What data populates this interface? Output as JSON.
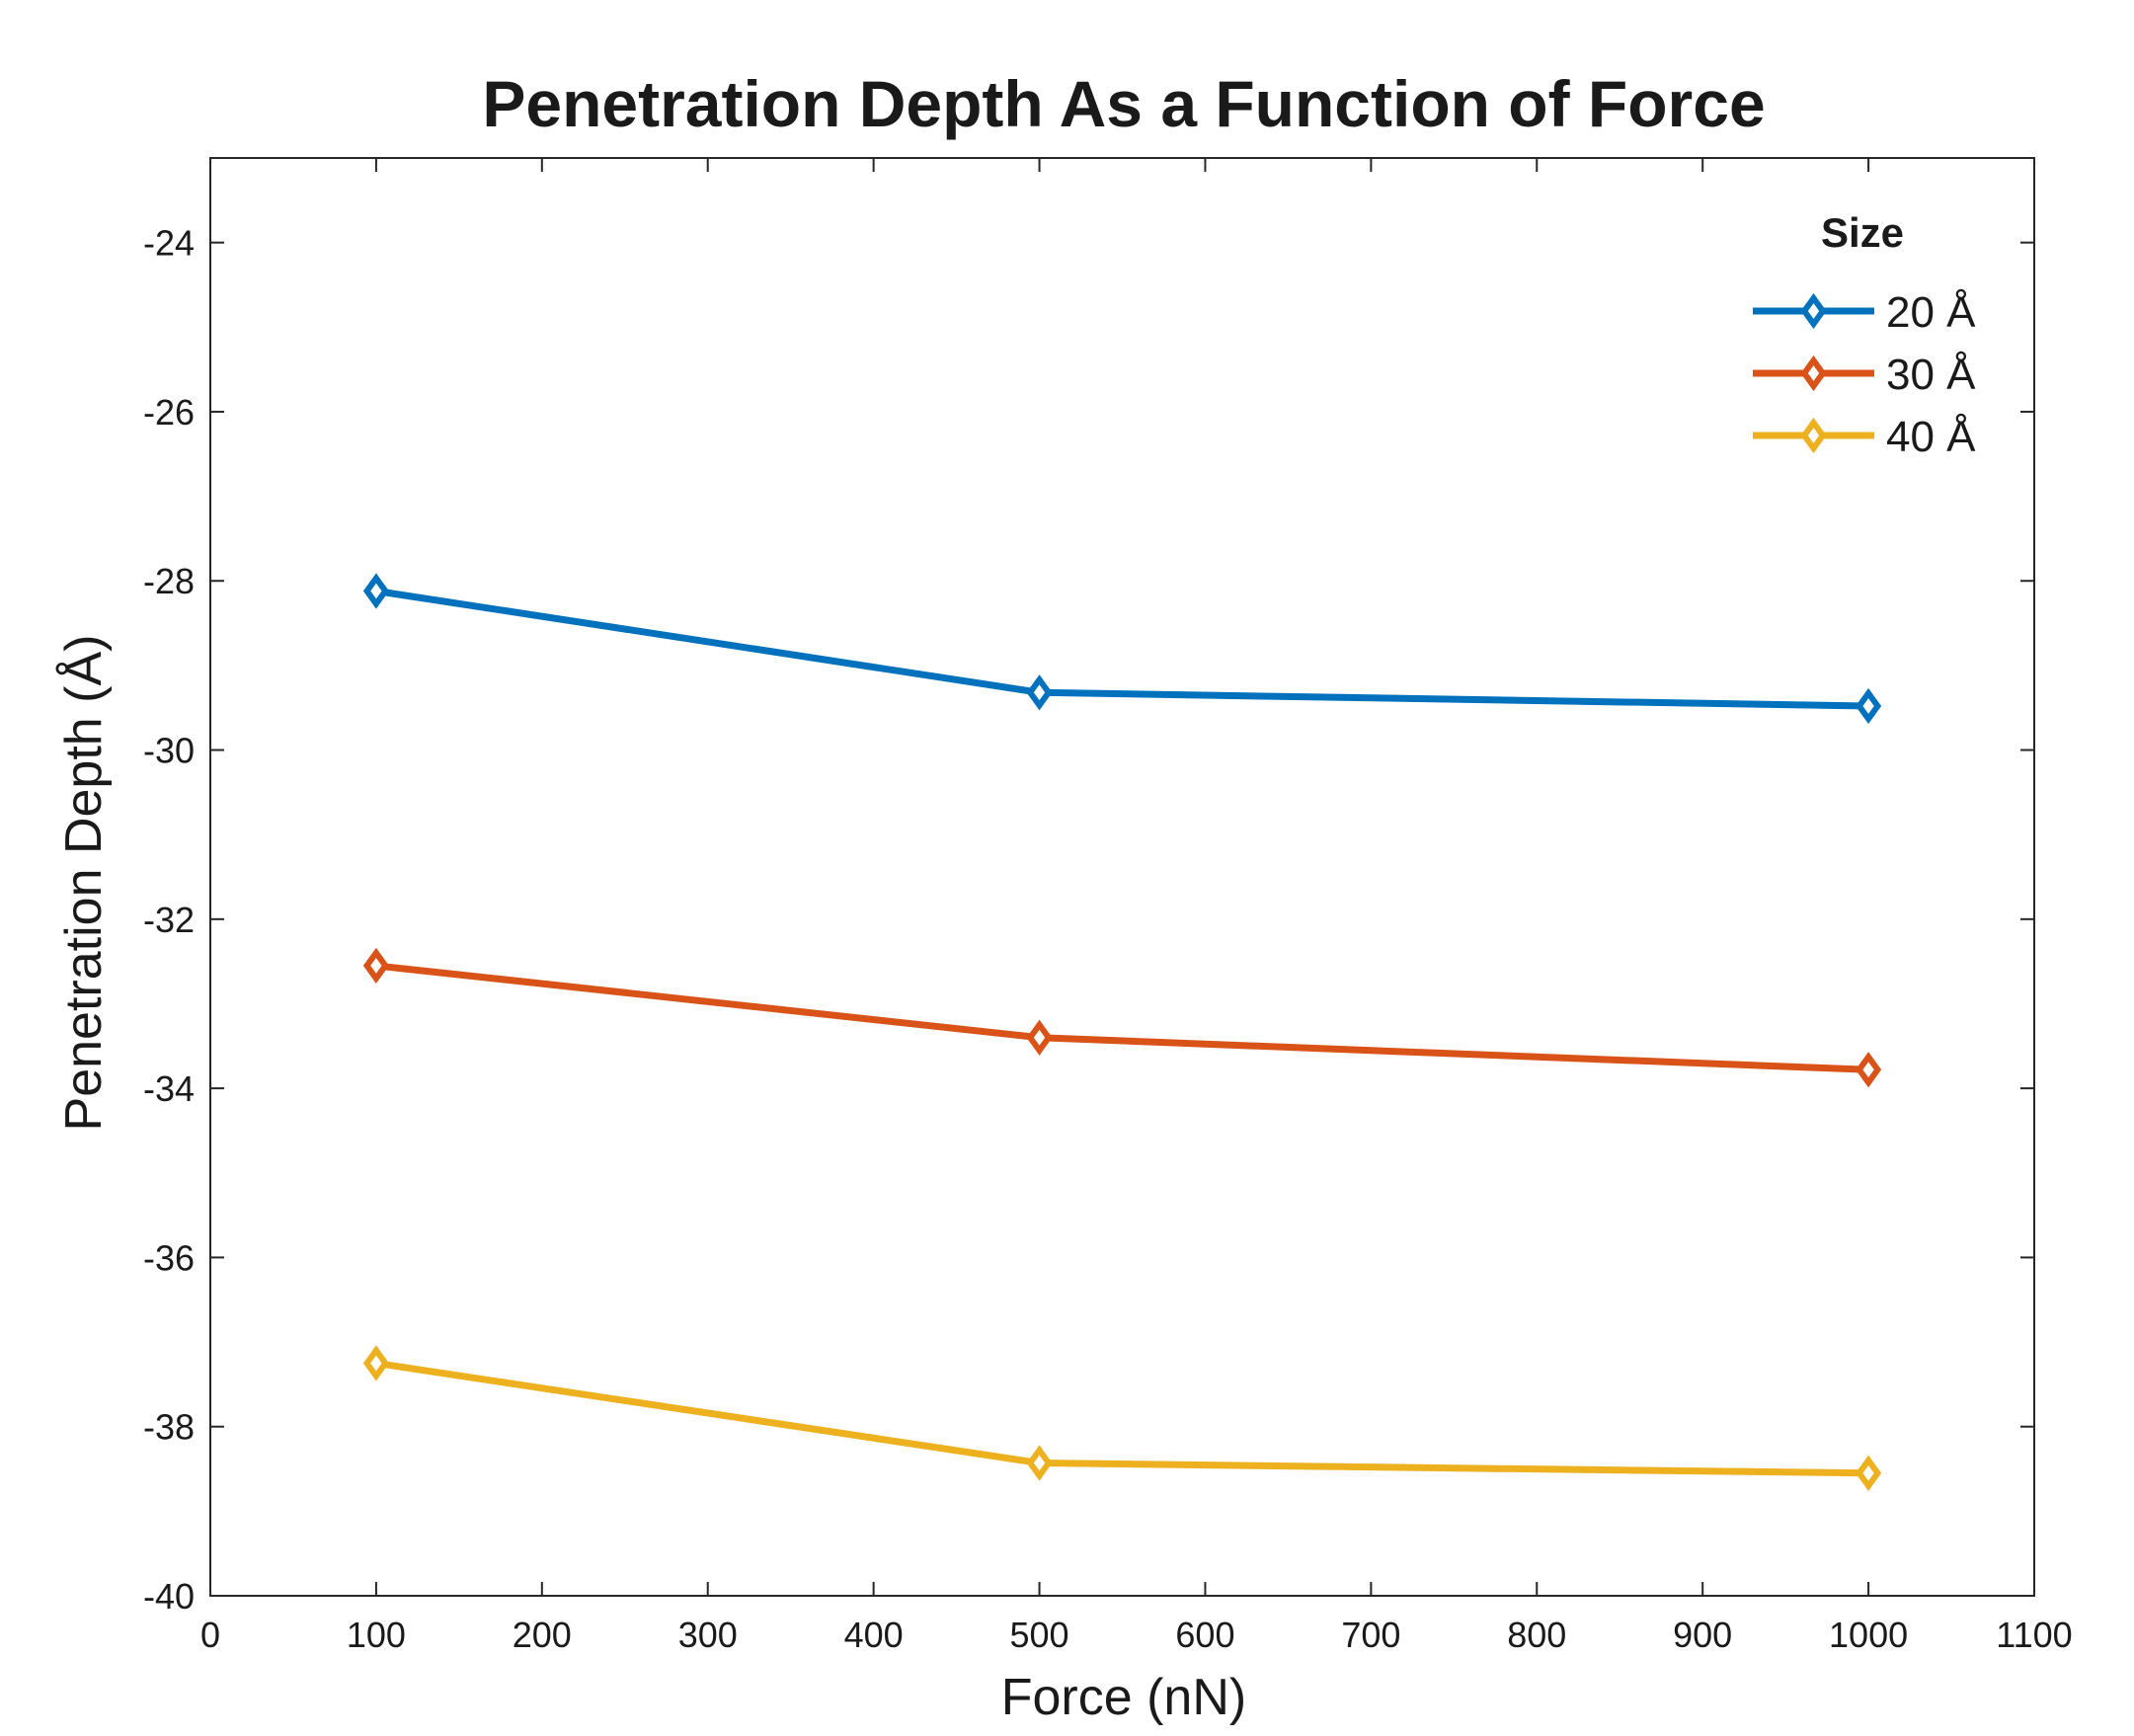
{
  "chart_data": {
    "type": "line",
    "title": "Penetration Depth As a Function of Force",
    "xlabel": "Force (nN)",
    "ylabel": "Penetration Depth (Å)",
    "xlim": [
      0,
      1100
    ],
    "ylim": [
      -40,
      -23
    ],
    "x_ticks": [
      "0",
      "100",
      "200",
      "300",
      "400",
      "500",
      "600",
      "700",
      "800",
      "900",
      "1000",
      "1100"
    ],
    "y_ticks": [
      "-24",
      "-26",
      "-28",
      "-30",
      "-32",
      "-34",
      "-36",
      "-38",
      "-40"
    ],
    "x": [
      100,
      500,
      1000
    ],
    "series": [
      {
        "name": "20 Å",
        "values": [
          -28.12,
          -29.32,
          -29.48
        ],
        "color": "#0072BD"
      },
      {
        "name": "30 Å",
        "values": [
          -32.55,
          -33.4,
          -33.78
        ],
        "color": "#D95319"
      },
      {
        "name": "40 Å",
        "values": [
          -37.25,
          -38.43,
          -38.55
        ],
        "color": "#EDB120"
      }
    ],
    "marker": "diamond",
    "legend": {
      "title": "Size",
      "placement": "top-right"
    },
    "grid": false
  }
}
